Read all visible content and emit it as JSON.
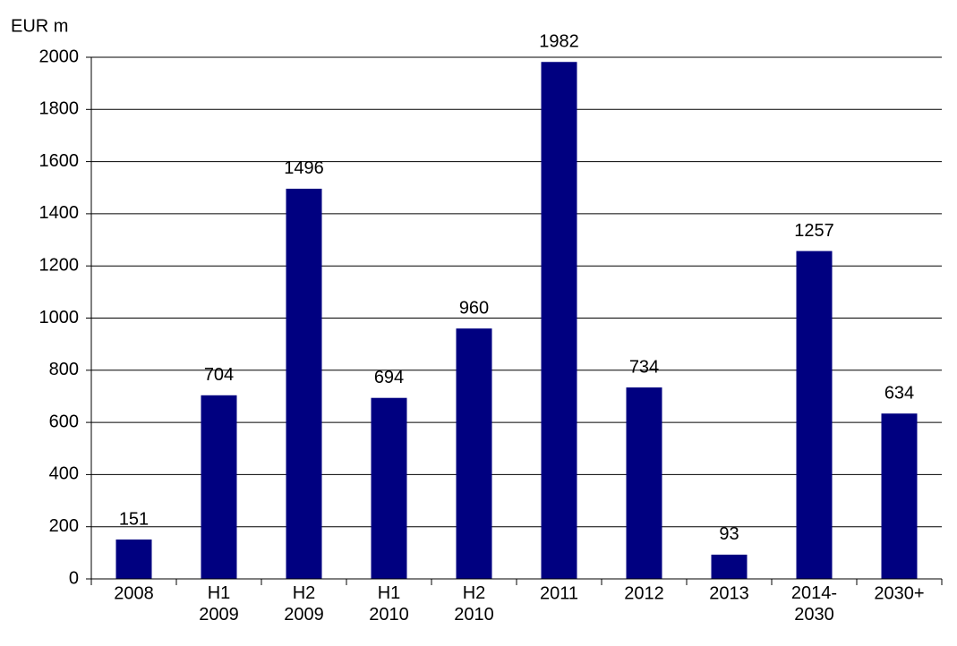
{
  "chart_data": {
    "type": "bar",
    "y_label": "EUR m",
    "categories": [
      "2008",
      "H1\n2009",
      "H2\n2009",
      "H1\n2010",
      "H2\n2010",
      "2011",
      "2012",
      "2013",
      "2014-\n2030",
      "2030+"
    ],
    "values": [
      151,
      704,
      1496,
      694,
      960,
      1982,
      734,
      93,
      1257,
      634
    ],
    "color": "#000080",
    "ylim": [
      0,
      2000
    ],
    "yticks": [
      0,
      200,
      400,
      600,
      800,
      1000,
      1200,
      1400,
      1600,
      1800,
      2000
    ],
    "grid": true,
    "data_labels": true
  }
}
